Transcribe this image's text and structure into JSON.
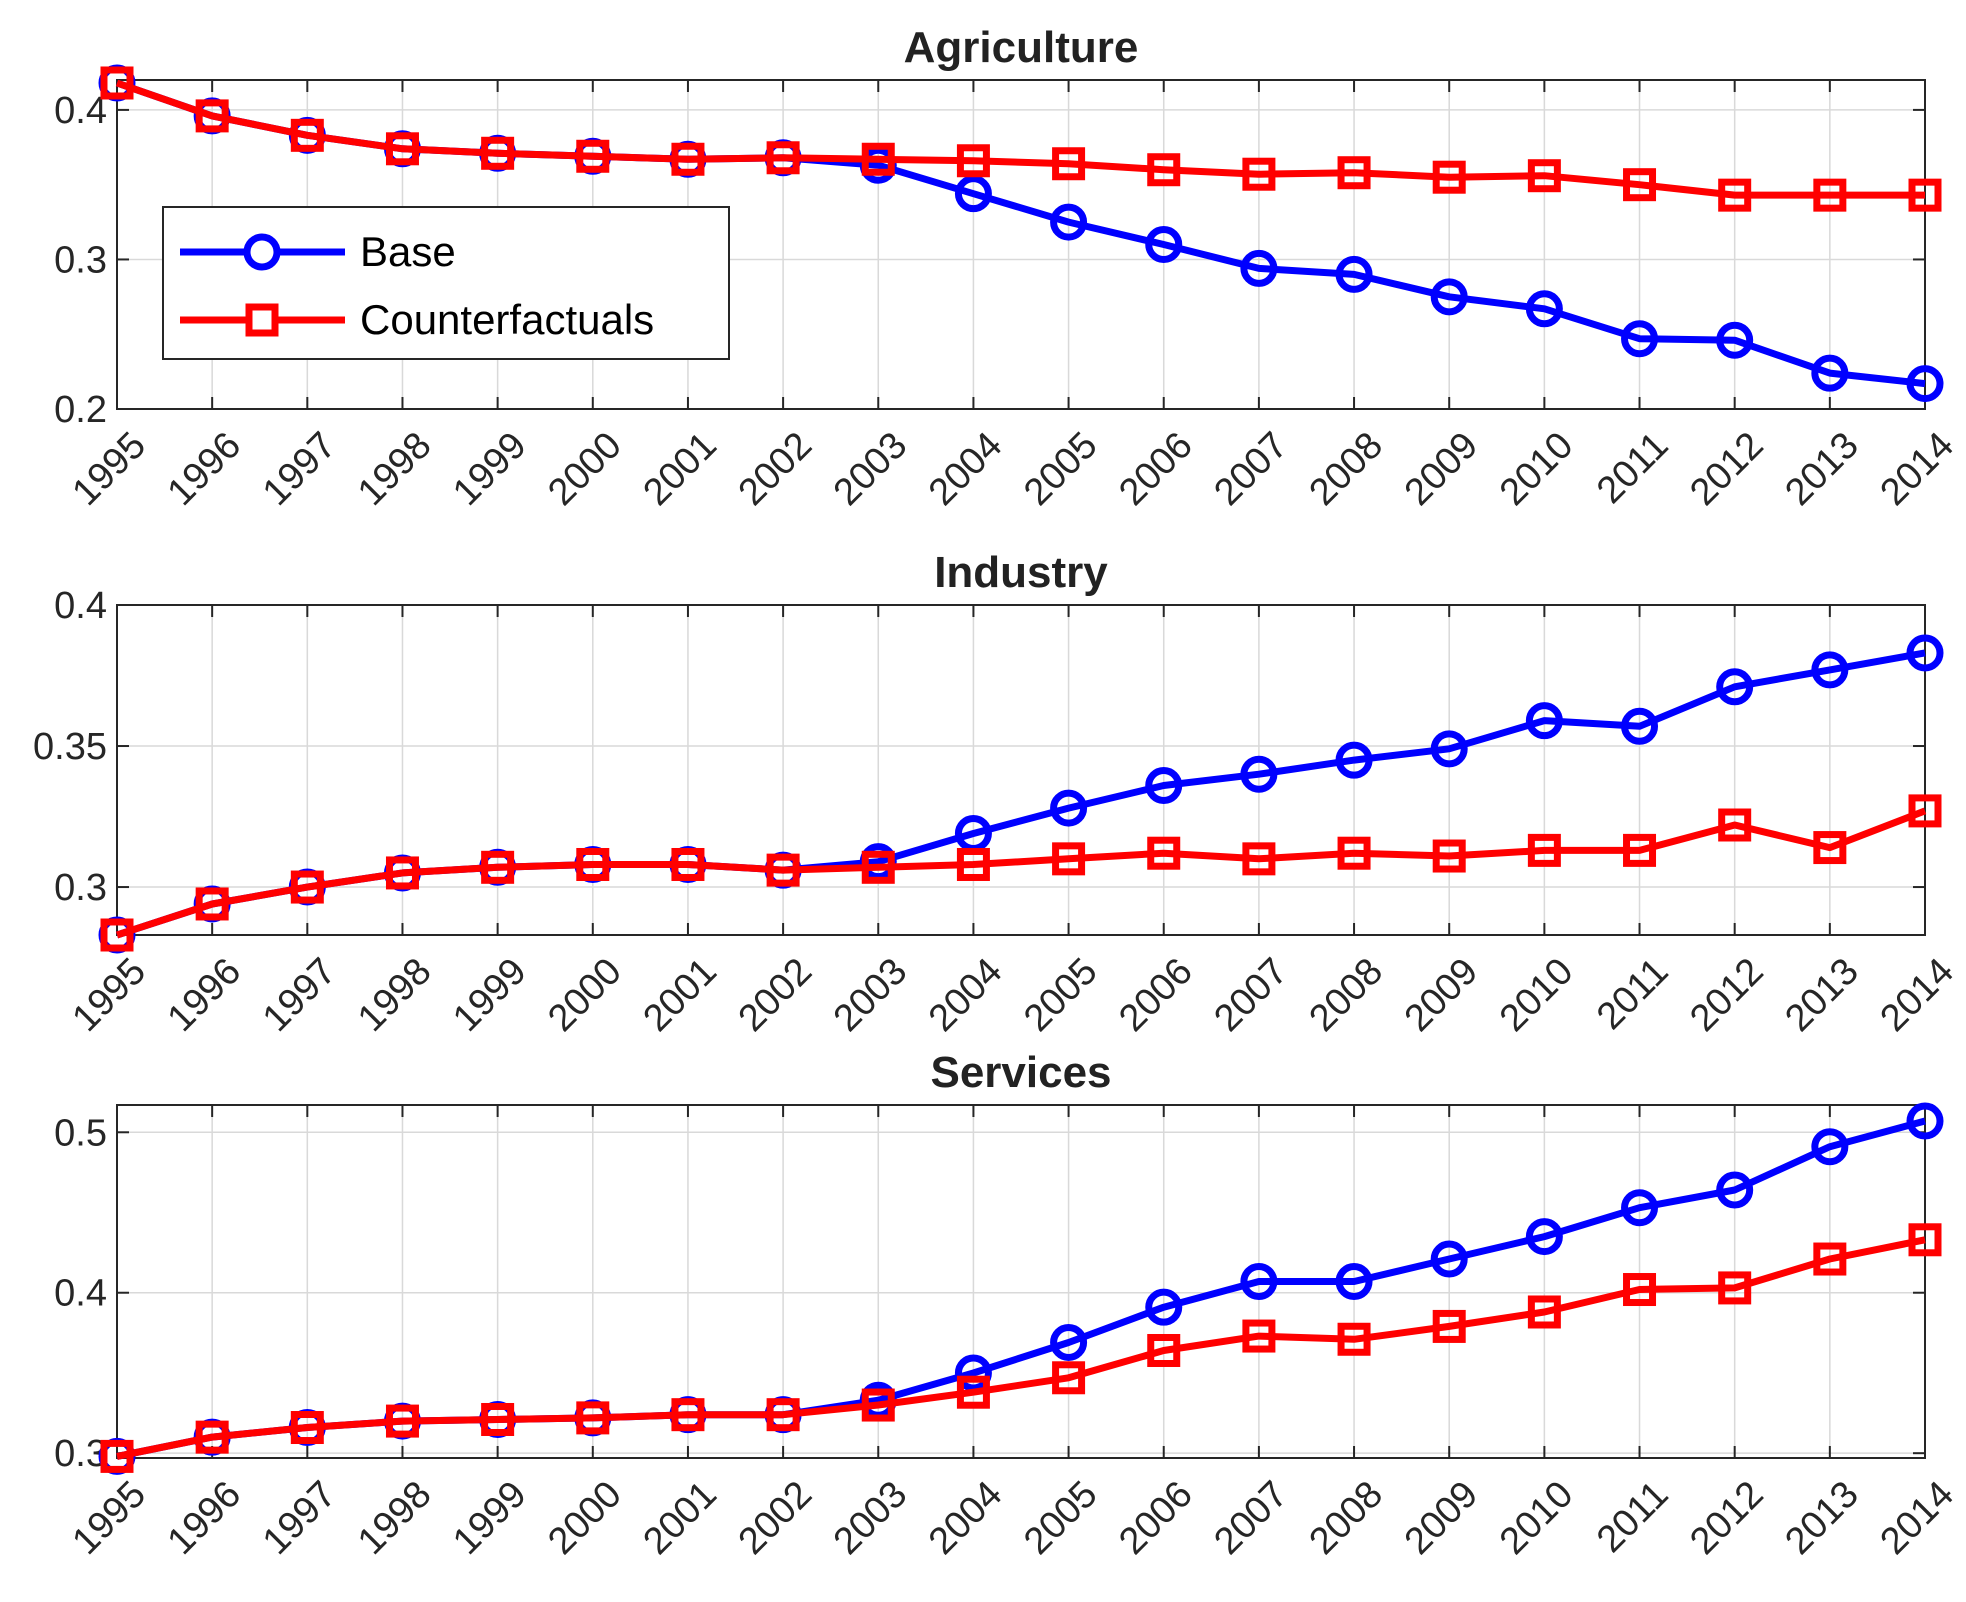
{
  "colors": {
    "base": "#0000ff",
    "counterfactual": "#ff0000"
  },
  "legend": {
    "base_label": "Base",
    "counterfactual_label": "Counterfactuals",
    "placement": "inside left of Agriculture panel"
  },
  "chart_data": [
    {
      "type": "line",
      "title": "Agriculture",
      "categories": [
        "1995",
        "1996",
        "1997",
        "1998",
        "1999",
        "2000",
        "2001",
        "2002",
        "2003",
        "2004",
        "2005",
        "2006",
        "2007",
        "2008",
        "2009",
        "2010",
        "2011",
        "2012",
        "2013",
        "2014"
      ],
      "ylim": [
        0.2,
        0.42
      ],
      "yticks": [
        0.2,
        0.3,
        0.4
      ],
      "ytick_labels": [
        "0.2",
        "0.3",
        "0.4"
      ],
      "grid": true,
      "series": [
        {
          "name": "Base",
          "marker": "circle",
          "values": [
            0.418,
            0.396,
            0.383,
            0.374,
            0.371,
            0.369,
            0.367,
            0.368,
            0.363,
            0.344,
            0.325,
            0.31,
            0.294,
            0.29,
            0.275,
            0.267,
            0.247,
            0.246,
            0.224,
            0.217
          ]
        },
        {
          "name": "Counterfactuals",
          "marker": "square",
          "values": [
            0.418,
            0.396,
            0.383,
            0.374,
            0.371,
            0.369,
            0.367,
            0.368,
            0.367,
            0.366,
            0.364,
            0.36,
            0.357,
            0.358,
            0.355,
            0.356,
            0.35,
            0.343,
            0.343,
            0.343
          ]
        }
      ]
    },
    {
      "type": "line",
      "title": "Industry",
      "categories": [
        "1995",
        "1996",
        "1997",
        "1998",
        "1999",
        "2000",
        "2001",
        "2002",
        "2003",
        "2004",
        "2005",
        "2006",
        "2007",
        "2008",
        "2009",
        "2010",
        "2011",
        "2012",
        "2013",
        "2014"
      ],
      "ylim": [
        0.283,
        0.4
      ],
      "yticks": [
        0.3,
        0.35,
        0.4
      ],
      "ytick_labels": [
        "0.3",
        "0.35",
        "0.4"
      ],
      "grid": true,
      "series": [
        {
          "name": "Base",
          "marker": "circle",
          "values": [
            0.283,
            0.294,
            0.3,
            0.305,
            0.307,
            0.308,
            0.308,
            0.306,
            0.309,
            0.319,
            0.328,
            0.336,
            0.34,
            0.345,
            0.349,
            0.359,
            0.357,
            0.371,
            0.377,
            0.383
          ]
        },
        {
          "name": "Counterfactuals",
          "marker": "square",
          "values": [
            0.283,
            0.294,
            0.3,
            0.305,
            0.307,
            0.308,
            0.308,
            0.306,
            0.307,
            0.308,
            0.31,
            0.312,
            0.31,
            0.312,
            0.311,
            0.313,
            0.313,
            0.322,
            0.314,
            0.327
          ]
        }
      ]
    },
    {
      "type": "line",
      "title": "Services",
      "categories": [
        "1995",
        "1996",
        "1997",
        "1998",
        "1999",
        "2000",
        "2001",
        "2002",
        "2003",
        "2004",
        "2005",
        "2006",
        "2007",
        "2008",
        "2009",
        "2010",
        "2011",
        "2012",
        "2013",
        "2014"
      ],
      "ylim": [
        0.297,
        0.517
      ],
      "yticks": [
        0.3,
        0.4,
        0.5
      ],
      "ytick_labels": [
        "0.3",
        "0.4",
        "0.5"
      ],
      "grid": true,
      "series": [
        {
          "name": "Base",
          "marker": "circle",
          "values": [
            0.298,
            0.31,
            0.316,
            0.32,
            0.321,
            0.322,
            0.324,
            0.324,
            0.333,
            0.35,
            0.369,
            0.391,
            0.407,
            0.407,
            0.421,
            0.435,
            0.453,
            0.464,
            0.491,
            0.507
          ]
        },
        {
          "name": "Counterfactuals",
          "marker": "square",
          "values": [
            0.298,
            0.31,
            0.316,
            0.32,
            0.321,
            0.322,
            0.324,
            0.324,
            0.33,
            0.338,
            0.347,
            0.364,
            0.373,
            0.371,
            0.379,
            0.388,
            0.402,
            0.403,
            0.421,
            0.433
          ]
        }
      ]
    }
  ]
}
